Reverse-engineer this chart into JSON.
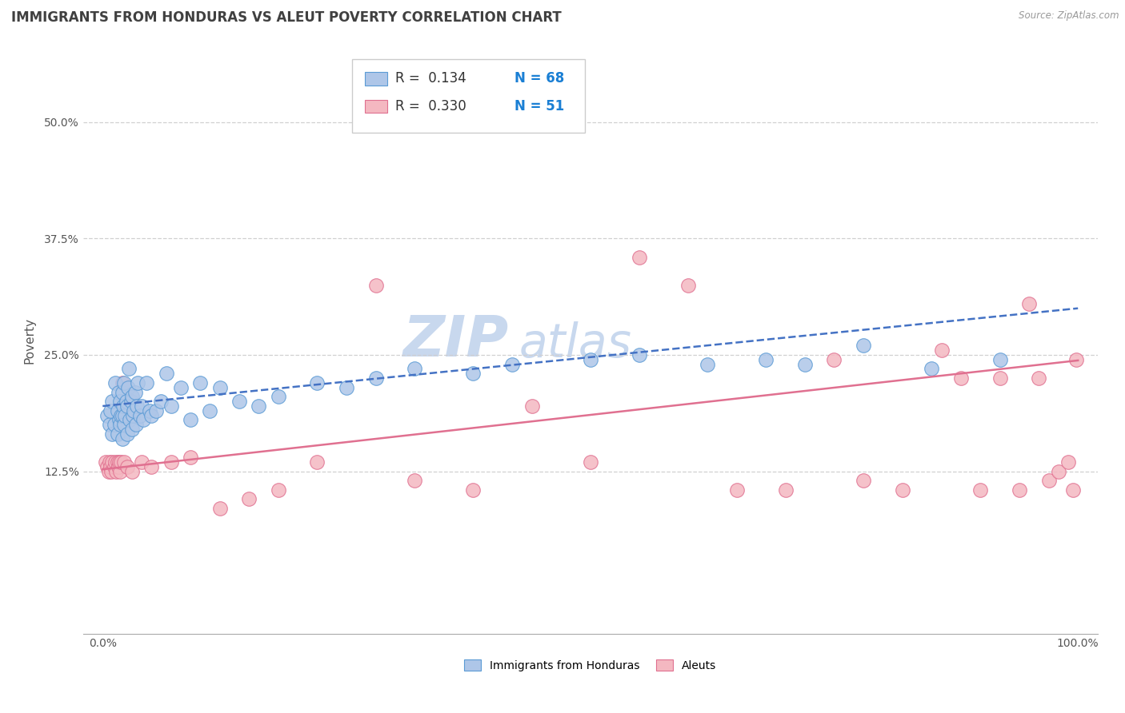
{
  "title": "IMMIGRANTS FROM HONDURAS VS ALEUT POVERTY CORRELATION CHART",
  "source_text": "Source: ZipAtlas.com",
  "ylabel": "Poverty",
  "watermark_zip": "ZIP",
  "watermark_atlas": "atlas",
  "xlim": [
    -0.02,
    1.02
  ],
  "ylim": [
    -0.05,
    0.58
  ],
  "xticklabels": [
    "0.0%",
    "100.0%"
  ],
  "xtick_positions": [
    0.0,
    1.0
  ],
  "ytick_positions": [
    0.125,
    0.25,
    0.375,
    0.5
  ],
  "yticklabels": [
    "12.5%",
    "25.0%",
    "37.5%",
    "50.0%"
  ],
  "legend_r1": "R =  0.134",
  "legend_n1": "N = 68",
  "legend_r2": "R =  0.330",
  "legend_n2": "N = 51",
  "blue_color": "#aec6e8",
  "pink_color": "#f4b8c1",
  "blue_edge_color": "#5b9bd5",
  "pink_edge_color": "#e07090",
  "blue_line_color": "#4472c4",
  "pink_line_color": "#e07090",
  "grid_color": "#d0d0d0",
  "title_color": "#404040",
  "blue_scatter_x": [
    0.005,
    0.007,
    0.008,
    0.01,
    0.01,
    0.012,
    0.013,
    0.015,
    0.015,
    0.016,
    0.017,
    0.018,
    0.018,
    0.019,
    0.02,
    0.02,
    0.02,
    0.021,
    0.022,
    0.022,
    0.023,
    0.024,
    0.025,
    0.025,
    0.026,
    0.027,
    0.028,
    0.029,
    0.03,
    0.03,
    0.031,
    0.032,
    0.033,
    0.034,
    0.035,
    0.036,
    0.038,
    0.04,
    0.042,
    0.045,
    0.048,
    0.05,
    0.055,
    0.06,
    0.065,
    0.07,
    0.08,
    0.09,
    0.1,
    0.11,
    0.12,
    0.14,
    0.16,
    0.18,
    0.22,
    0.25,
    0.28,
    0.32,
    0.38,
    0.42,
    0.5,
    0.55,
    0.62,
    0.68,
    0.72,
    0.78,
    0.85,
    0.92
  ],
  "blue_scatter_y": [
    0.185,
    0.175,
    0.19,
    0.165,
    0.2,
    0.175,
    0.22,
    0.165,
    0.19,
    0.21,
    0.18,
    0.175,
    0.2,
    0.185,
    0.16,
    0.185,
    0.21,
    0.195,
    0.175,
    0.22,
    0.185,
    0.2,
    0.165,
    0.195,
    0.215,
    0.235,
    0.18,
    0.2,
    0.17,
    0.205,
    0.185,
    0.19,
    0.21,
    0.175,
    0.195,
    0.22,
    0.185,
    0.195,
    0.18,
    0.22,
    0.19,
    0.185,
    0.19,
    0.2,
    0.23,
    0.195,
    0.215,
    0.18,
    0.22,
    0.19,
    0.215,
    0.2,
    0.195,
    0.205,
    0.22,
    0.215,
    0.225,
    0.235,
    0.23,
    0.24,
    0.245,
    0.25,
    0.24,
    0.245,
    0.24,
    0.26,
    0.235,
    0.245
  ],
  "pink_scatter_x": [
    0.003,
    0.005,
    0.006,
    0.007,
    0.008,
    0.009,
    0.01,
    0.012,
    0.013,
    0.014,
    0.015,
    0.016,
    0.017,
    0.018,
    0.019,
    0.02,
    0.022,
    0.025,
    0.03,
    0.04,
    0.05,
    0.07,
    0.09,
    0.12,
    0.15,
    0.18,
    0.22,
    0.28,
    0.32,
    0.38,
    0.44,
    0.5,
    0.55,
    0.6,
    0.65,
    0.7,
    0.75,
    0.78,
    0.82,
    0.86,
    0.88,
    0.9,
    0.92,
    0.94,
    0.95,
    0.96,
    0.97,
    0.98,
    0.99,
    0.995,
    0.998
  ],
  "pink_scatter_y": [
    0.135,
    0.13,
    0.125,
    0.135,
    0.13,
    0.125,
    0.135,
    0.13,
    0.135,
    0.125,
    0.135,
    0.13,
    0.135,
    0.125,
    0.135,
    0.22,
    0.135,
    0.13,
    0.125,
    0.135,
    0.13,
    0.135,
    0.14,
    0.085,
    0.095,
    0.105,
    0.135,
    0.325,
    0.115,
    0.105,
    0.195,
    0.135,
    0.355,
    0.325,
    0.105,
    0.105,
    0.245,
    0.115,
    0.105,
    0.255,
    0.225,
    0.105,
    0.225,
    0.105,
    0.305,
    0.225,
    0.115,
    0.125,
    0.135,
    0.105,
    0.245
  ],
  "blue_trend_x": [
    0.0,
    1.0
  ],
  "blue_trend_y": [
    0.195,
    0.3
  ],
  "pink_trend_x": [
    0.0,
    1.0
  ],
  "pink_trend_y": [
    0.127,
    0.244
  ],
  "background_color": "#ffffff",
  "title_fontsize": 12,
  "axis_label_fontsize": 11,
  "tick_fontsize": 10,
  "legend_fontsize": 12,
  "watermark_fontsize_zip": 52,
  "watermark_fontsize_atlas": 42,
  "watermark_color": "#c8d8ee"
}
